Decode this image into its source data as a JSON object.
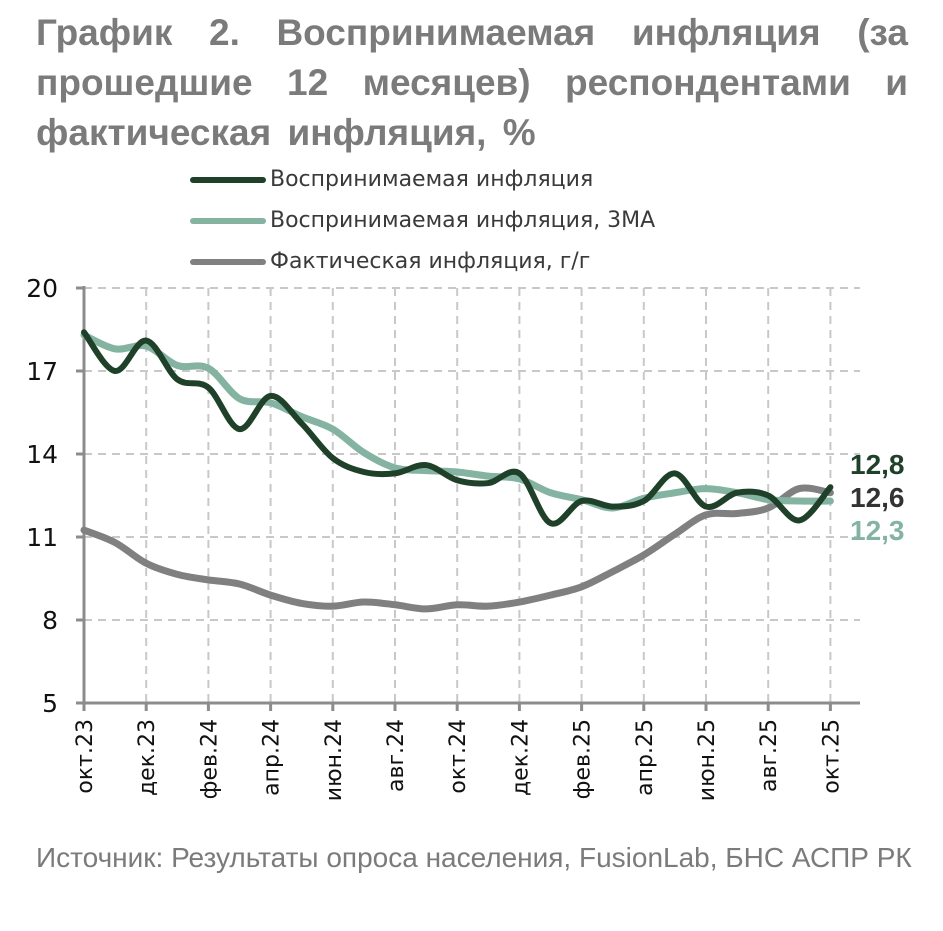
{
  "title": "График 2. Воспринимаемая инфляция (за прошедшие 12 месяцев) респондентами и фактическая инфляция, %",
  "source": "Источник: Результаты опроса населения, FusionLab, БНС АСПР РК",
  "legend": [
    {
      "label": "Воспринимаемая инфляция",
      "color": "#1f4029"
    },
    {
      "label": "Воспринимаемая инфляция, 3МА",
      "color": "#84b3a2"
    },
    {
      "label": "Фактическая инфляция, г/г",
      "color": "#808080"
    }
  ],
  "end_labels": [
    {
      "text": "12,8",
      "color": "#1f4029"
    },
    {
      "text": "12,6",
      "color": "#333333"
    },
    {
      "text": "12,3",
      "color": "#84b3a2"
    }
  ],
  "chart_data": {
    "type": "line",
    "title": "График 2. Воспринимаемая инфляция (за прошедшие 12 месяцев) респондентами и фактическая инфляция, %",
    "xlabel": "",
    "ylabel": "%",
    "ylim": [
      5,
      20
    ],
    "yticks": [
      5,
      8,
      11,
      14,
      17,
      20
    ],
    "grid": true,
    "legend_position": "top",
    "x": [
      "окт.23",
      "ноя.23",
      "дек.23",
      "янв.24",
      "фев.24",
      "мар.24",
      "апр.24",
      "май.24",
      "июн.24",
      "июл.24",
      "авг.24",
      "сен.24",
      "окт.24",
      "ноя.24",
      "дек.24",
      "янв.25",
      "фев.25",
      "мар.25",
      "апр.25",
      "май.25",
      "июн.25",
      "июл.25",
      "авг.25",
      "сен.25",
      "окт.25"
    ],
    "xtick_labels": [
      "окт.23",
      "дек.23",
      "фев.24",
      "апр.24",
      "июн.24",
      "авг.24",
      "окт.24",
      "дек.24",
      "фев.25",
      "апр.25",
      "июн.25",
      "авг.25",
      "окт.25"
    ],
    "series": [
      {
        "name": "Воспринимаемая инфляция",
        "color": "#1f4029",
        "values": [
          18.4,
          17.0,
          18.1,
          16.7,
          16.4,
          14.9,
          16.1,
          15.1,
          13.85,
          13.35,
          13.3,
          13.6,
          13.05,
          12.95,
          13.3,
          11.5,
          12.3,
          12.1,
          12.3,
          13.3,
          12.1,
          12.6,
          12.5,
          11.6,
          12.8
        ]
      },
      {
        "name": "Воспринимаемая инфляция, 3МА",
        "color": "#84b3a2",
        "values": [
          18.3,
          17.8,
          17.9,
          17.2,
          17.1,
          16.0,
          15.85,
          15.35,
          14.9,
          14.05,
          13.5,
          13.4,
          13.35,
          13.2,
          13.1,
          12.6,
          12.35,
          12.05,
          12.4,
          12.6,
          12.75,
          12.6,
          12.35,
          12.3,
          12.3
        ]
      },
      {
        "name": "Фактическая инфляция, г/г",
        "color": "#808080",
        "values": [
          11.25,
          10.8,
          10.05,
          9.65,
          9.45,
          9.3,
          8.9,
          8.6,
          8.5,
          8.65,
          8.55,
          8.4,
          8.55,
          8.5,
          8.65,
          8.9,
          9.2,
          9.75,
          10.35,
          11.1,
          11.8,
          11.85,
          12.05,
          12.75,
          12.6
        ]
      }
    ],
    "annotations": [
      "12,8",
      "12,6",
      "12,3"
    ]
  }
}
